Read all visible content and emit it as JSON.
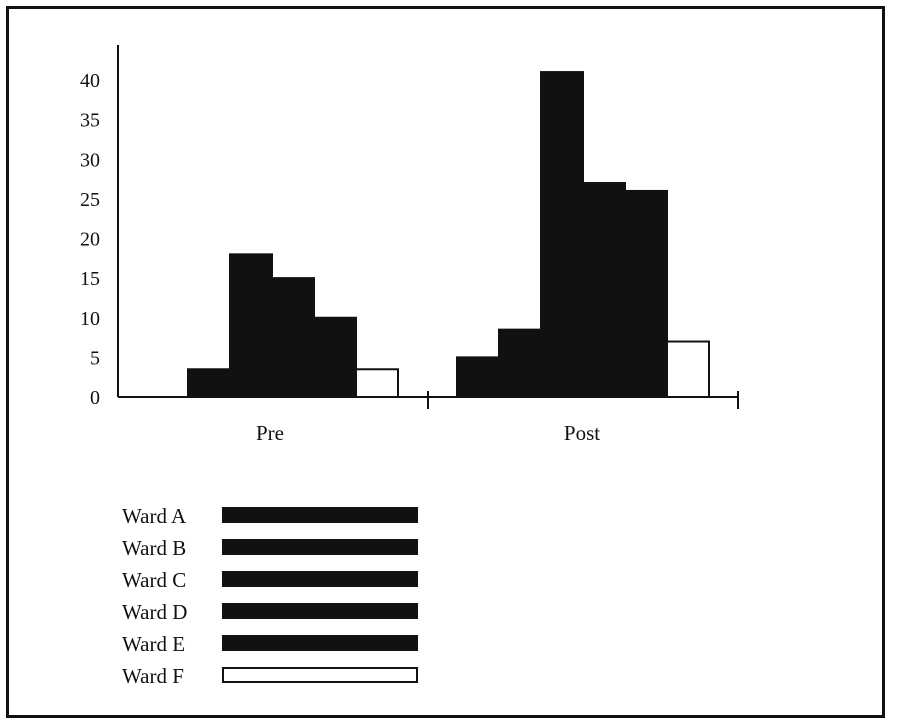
{
  "chart_data": {
    "type": "bar",
    "title": "",
    "xlabel": "",
    "ylabel": "",
    "categories": [
      "Pre",
      "Post"
    ],
    "ylim": [
      0,
      40
    ],
    "yticks": [
      0,
      5,
      10,
      15,
      20,
      25,
      30,
      35,
      40
    ],
    "series": [
      {
        "name": "Ward A",
        "values": [
          0,
          5
        ],
        "fill": "#111111"
      },
      {
        "name": "Ward B",
        "values": [
          3.5,
          8.5
        ],
        "fill": "#111111"
      },
      {
        "name": "Ward C",
        "values": [
          18,
          41
        ],
        "fill": "#111111"
      },
      {
        "name": "Ward D",
        "values": [
          15,
          27
        ],
        "fill": "#111111"
      },
      {
        "name": "Ward E",
        "values": [
          10,
          26
        ],
        "fill": "#111111"
      },
      {
        "name": "Ward F",
        "values": [
          3.5,
          7
        ],
        "fill": "#ffffff"
      }
    ],
    "legend_position": "bottom-left",
    "grid": false
  }
}
